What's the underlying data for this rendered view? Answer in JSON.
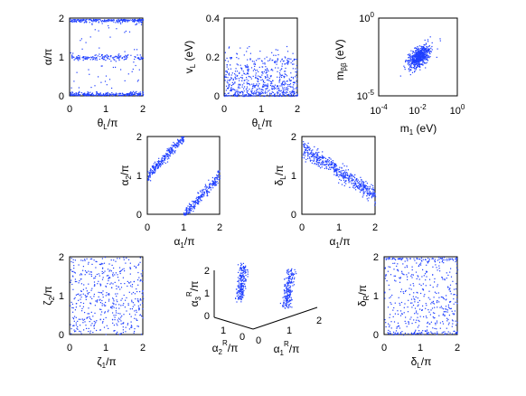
{
  "figure": {
    "point_color": "#1f3fff",
    "axis_color": "#000000"
  },
  "chart_data": [
    {
      "type": "scatter",
      "xlabel": "θ_L/π",
      "ylabel": "α/π",
      "xlim": [
        0,
        2
      ],
      "ylim": [
        0,
        2
      ],
      "xticks": [
        "0",
        "1",
        "2"
      ],
      "yticks": [
        "0",
        "1",
        "2"
      ],
      "grid": false,
      "pattern": "bands at α/π ≈ 0, 1, 2 across all θ_L/π"
    },
    {
      "type": "scatter",
      "xlabel": "θ_L/π",
      "ylabel": "v_L (eV)",
      "xlim": [
        0,
        2
      ],
      "ylim": [
        0,
        0.4
      ],
      "xticks": [
        "0",
        "1",
        "2"
      ],
      "yticks": [
        "0",
        "0.2",
        "0.4"
      ],
      "grid": false,
      "pattern": "points fill 0–0.2 eV, densest near 0, sparse up to ~0.25"
    },
    {
      "type": "scatter",
      "xlabel": "m_1 (eV)",
      "ylabel": "m_ββ (eV)",
      "xscale": "log",
      "yscale": "log",
      "xlim": [
        0.0001,
        1
      ],
      "ylim": [
        1e-05,
        1
      ],
      "xticks": [
        "10^-4",
        "10^-2",
        "10^0"
      ],
      "yticks": [
        "10^-5",
        "10^0"
      ],
      "grid": false,
      "pattern": "cluster around m_1 ≈ 0.003–0.02 eV, m_ββ ≈ 0.0005–0.01 eV"
    },
    {
      "type": "scatter",
      "xlabel": "α_1/π",
      "ylabel": "α_2/π",
      "xlim": [
        0,
        2
      ],
      "ylim": [
        0,
        2
      ],
      "xticks": [
        "0",
        "1",
        "2"
      ],
      "yticks": [
        "0",
        "1",
        "2"
      ],
      "grid": false,
      "pattern": "two parallel diagonal bands, α_2 ≈ α_1 + 1 (mod 2)"
    },
    {
      "type": "scatter",
      "xlabel": "α_1/π",
      "ylabel": "δ_L/π",
      "xlim": [
        0,
        2
      ],
      "ylim": [
        0,
        2
      ],
      "xticks": [
        "0",
        "1",
        "2"
      ],
      "yticks": [
        "0",
        "1",
        "2"
      ],
      "grid": false,
      "pattern": "anti-diagonal band from (0, 1.7) to (2, 0.5)"
    },
    {
      "type": "scatter",
      "xlabel": "ζ_1/π",
      "ylabel": "ζ_2/π",
      "xlim": [
        0,
        2
      ],
      "ylim": [
        0,
        2
      ],
      "xticks": [
        "0",
        "1",
        "2"
      ],
      "yticks": [
        "0",
        "1",
        "2"
      ],
      "grid": false,
      "pattern": "uniform scatter over the full square"
    },
    {
      "type": "scatter",
      "projection": "3d",
      "xlabel": "α_1^R/π",
      "ylabel": "α_2^R/π",
      "zlabel": "α_3^R/π",
      "xlim": [
        0,
        2
      ],
      "ylim": [
        0,
        1
      ],
      "zlim": [
        0,
        2
      ],
      "xticks": [
        "0",
        "1",
        "2"
      ],
      "yticks": [
        "0",
        "1"
      ],
      "zticks": [
        "0",
        "1",
        "2"
      ],
      "grid": false,
      "pattern": "two vertical clusters near α_1^R/π ≈ 0 and ≈ 1, spread in α_3^R/π"
    },
    {
      "type": "scatter",
      "xlabel": "δ_L/π",
      "ylabel": "δ_R/π",
      "xlim": [
        0,
        2
      ],
      "ylim": [
        0,
        2
      ],
      "xticks": [
        "0",
        "1",
        "2"
      ],
      "yticks": [
        "0",
        "1",
        "2"
      ],
      "grid": false,
      "pattern": "broad scatter, denser near δ_R/π ≈ 0 and ≈ 2"
    }
  ]
}
